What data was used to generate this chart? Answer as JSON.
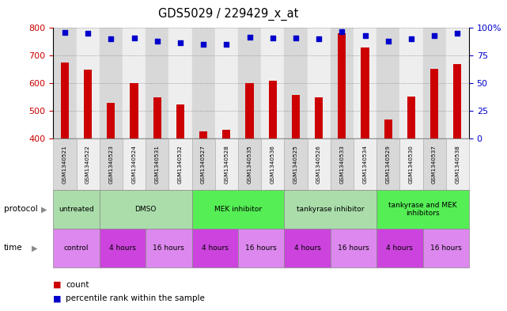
{
  "title": "GDS5029 / 229429_x_at",
  "samples": [
    "GSM1340521",
    "GSM1340522",
    "GSM1340523",
    "GSM1340524",
    "GSM1340531",
    "GSM1340532",
    "GSM1340527",
    "GSM1340528",
    "GSM1340535",
    "GSM1340536",
    "GSM1340525",
    "GSM1340526",
    "GSM1340533",
    "GSM1340534",
    "GSM1340529",
    "GSM1340530",
    "GSM1340537",
    "GSM1340538"
  ],
  "counts": [
    675,
    648,
    530,
    600,
    548,
    522,
    425,
    432,
    600,
    610,
    558,
    548,
    780,
    730,
    468,
    552,
    651,
    668
  ],
  "percentiles": [
    96,
    95,
    90,
    91,
    88,
    87,
    85,
    85,
    92,
    91,
    91,
    90,
    97,
    93,
    88,
    90,
    93,
    95
  ],
  "ylim_left": [
    400,
    800
  ],
  "ylim_right": [
    0,
    100
  ],
  "yticks_left": [
    400,
    500,
    600,
    700,
    800
  ],
  "yticks_right": [
    0,
    25,
    50,
    75,
    100
  ],
  "ytick_right_labels": [
    "0",
    "25",
    "50",
    "75",
    "100%"
  ],
  "bar_color": "#cc0000",
  "dot_color": "#0000cc",
  "grid_color": "#888888",
  "protocol_color_light": "#aaddaa",
  "protocol_color_bright": "#55ee55",
  "time_color_light": "#dd88ee",
  "time_color_bright": "#cc44dd",
  "sample_bg_even": "#d8d8d8",
  "sample_bg_odd": "#eeeeee"
}
